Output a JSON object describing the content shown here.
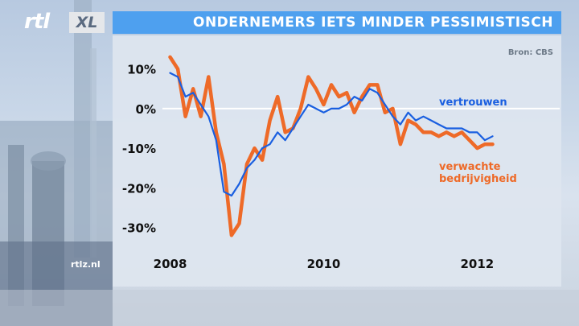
{
  "header": {
    "logo_text": "rtl",
    "logo_xl": "XL",
    "title": "ONDERNEMERS IETS MINDER PESSIMISTISCH"
  },
  "source_label": "Bron: CBS",
  "website": "rtlz.nl",
  "colors": {
    "title_bar": "#4ea0ef",
    "series_vertrouwen": "#1a5fe0",
    "series_bedrijvigheid": "#ee6a28",
    "zero_line": "#ffffff"
  },
  "chart_data": {
    "type": "line",
    "title": "",
    "xlabel": "",
    "ylabel": "",
    "ylim": [
      -36,
      14
    ],
    "xlim": [
      2007.9,
      2012.3
    ],
    "y_ticks": [
      10,
      0,
      -10,
      -20,
      -30
    ],
    "y_tick_labels": [
      "10%",
      "0%",
      "-10%",
      "-20%",
      "-30%"
    ],
    "x_ticks": [
      2008,
      2010,
      2012
    ],
    "x_tick_labels": [
      "2008",
      "2010",
      "2012"
    ],
    "grid": false,
    "series": [
      {
        "name": "vertrouwen",
        "x": [
          2008.0,
          2008.1,
          2008.2,
          2008.3,
          2008.4,
          2008.5,
          2008.6,
          2008.7,
          2008.8,
          2008.9,
          2009.0,
          2009.1,
          2009.2,
          2009.3,
          2009.4,
          2009.5,
          2009.6,
          2009.7,
          2009.8,
          2009.9,
          2010.0,
          2010.1,
          2010.2,
          2010.3,
          2010.4,
          2010.5,
          2010.6,
          2010.7,
          2010.8,
          2010.9,
          2011.0,
          2011.1,
          2011.2,
          2011.3,
          2011.4,
          2011.5,
          2011.6,
          2011.7,
          2011.8,
          2011.9,
          2012.0,
          2012.1,
          2012.2
        ],
        "values": [
          9,
          8,
          3,
          4,
          1,
          -2,
          -8,
          -21,
          -22,
          -19,
          -15,
          -13,
          -10,
          -9,
          -6,
          -8,
          -5,
          -2,
          1,
          0,
          -1,
          0,
          0,
          1,
          3,
          2,
          5,
          4,
          1,
          -2,
          -4,
          -1,
          -3,
          -2,
          -3,
          -4,
          -5,
          -5,
          -5,
          -6,
          -6,
          -8,
          -7
        ]
      },
      {
        "name": "verwachte bedrijvigheid",
        "x": [
          2008.0,
          2008.1,
          2008.2,
          2008.3,
          2008.4,
          2008.5,
          2008.6,
          2008.7,
          2008.8,
          2008.9,
          2009.0,
          2009.1,
          2009.2,
          2009.3,
          2009.4,
          2009.5,
          2009.6,
          2009.7,
          2009.8,
          2009.9,
          2010.0,
          2010.1,
          2010.2,
          2010.3,
          2010.4,
          2010.5,
          2010.6,
          2010.7,
          2010.8,
          2010.9,
          2011.0,
          2011.1,
          2011.2,
          2011.3,
          2011.4,
          2011.5,
          2011.6,
          2011.7,
          2011.8,
          2011.9,
          2012.0,
          2012.1,
          2012.2
        ],
        "values": [
          13,
          10,
          -2,
          5,
          -2,
          8,
          -6,
          -14,
          -32,
          -29,
          -14,
          -10,
          -13,
          -3,
          3,
          -6,
          -5,
          0,
          8,
          5,
          1,
          6,
          3,
          4,
          -1,
          3,
          6,
          6,
          -1,
          0,
          -9,
          -3,
          -4,
          -6,
          -6,
          -7,
          -6,
          -7,
          -6,
          -8,
          -10,
          -9,
          -9
        ]
      }
    ]
  }
}
